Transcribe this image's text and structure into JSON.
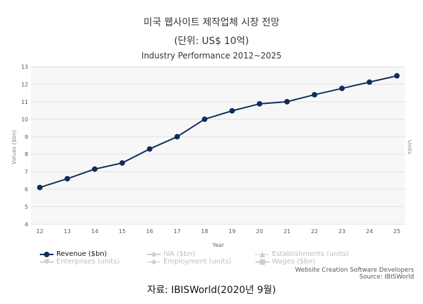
{
  "header": {
    "title_line1": "미국 웹사이트 제작업체 시장 전망",
    "title_line2": "(단위: US$ 10억)",
    "chart_title": "Industry Performance 2012~2025"
  },
  "chart_data": {
    "type": "line",
    "title": "Industry Performance 2012~2025",
    "xlabel": "Year",
    "ylabel": "Values ($bn)",
    "y2label": "Units",
    "categories": [
      "12",
      "13",
      "14",
      "15",
      "16",
      "17",
      "18",
      "19",
      "20",
      "21",
      "22",
      "23",
      "24",
      "25"
    ],
    "series": [
      {
        "name": "Revenue ($bn)",
        "color": "#0f2d5c",
        "values": [
          6.1,
          6.6,
          7.15,
          7.5,
          8.3,
          9.0,
          10.0,
          10.48,
          10.88,
          11.0,
          11.4,
          11.76,
          12.12,
          12.48
        ]
      }
    ],
    "ylim": [
      4,
      13
    ],
    "yticks": [
      "4",
      "5",
      "6",
      "7",
      "8",
      "9",
      "10",
      "11",
      "12",
      "13"
    ],
    "grid": true
  },
  "legend": {
    "items": [
      {
        "label": "Revenue ($bn)",
        "active": true
      },
      {
        "label": "IVA ($bn)",
        "active": false
      },
      {
        "label": "Establishments (units)",
        "active": false
      },
      {
        "label": "Enterprises (units)",
        "active": false
      },
      {
        "label": "Employment (units)",
        "active": false
      },
      {
        "label": "Wages ($bn)",
        "active": false
      }
    ]
  },
  "credits": {
    "line1": "Website Creation Software Developers",
    "line2": "Source: IBISWorld"
  },
  "footer": {
    "source": "자료: IBISWorld(2020년 9월)"
  }
}
